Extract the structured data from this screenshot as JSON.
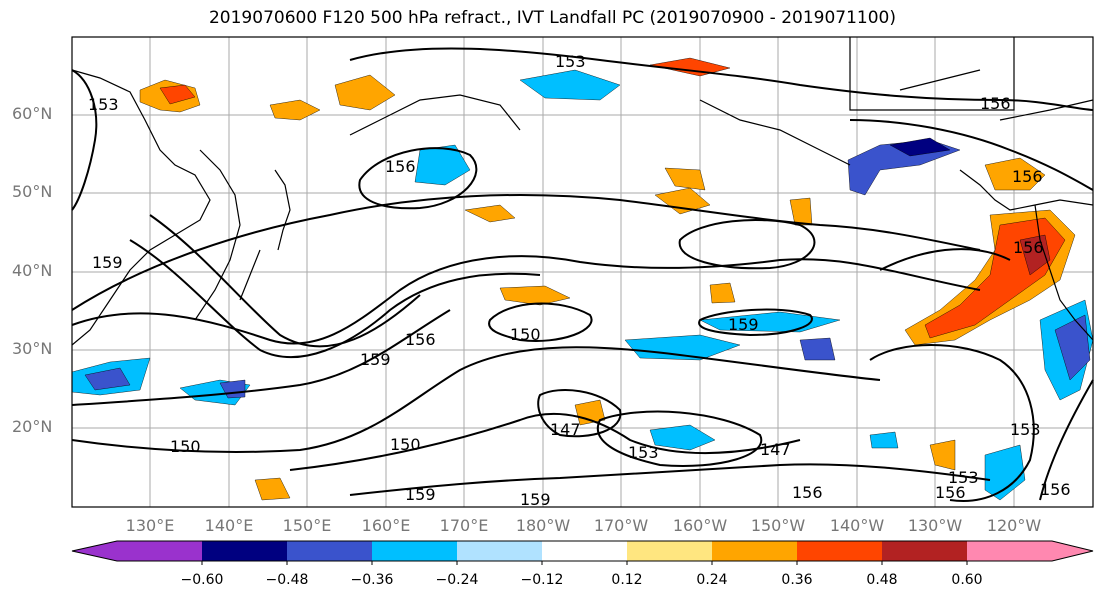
{
  "title": "2019070600 F120 500 hPa refract., IVT Landfall PC (2019070900 - 2019071100)",
  "map": {
    "lat_labels": [
      "60°N",
      "50°N",
      "40°N",
      "30°N",
      "20°N"
    ],
    "lon_labels": [
      "130°E",
      "140°E",
      "150°E",
      "160°E",
      "170°E",
      "180°W",
      "170°W",
      "160°W",
      "150°W",
      "140°W",
      "130°W",
      "120°W"
    ],
    "contour_labels": [
      "153",
      "156",
      "159",
      "150",
      "147"
    ],
    "colors": {
      "land_border": "#000000",
      "grid": "#aaaaaa"
    }
  },
  "colorbar": {
    "tick_labels": [
      "−0.60",
      "−0.48",
      "−0.36",
      "−0.24",
      "−0.12",
      "0.12",
      "0.24",
      "0.36",
      "0.48",
      "0.60"
    ],
    "colors": [
      "#9a32cd",
      "#000080",
      "#3a53cc",
      "#00bfff",
      "#b0e2ff",
      "#ffffff",
      "#ffe680",
      "#ffa500",
      "#ff4500",
      "#b22222",
      "#ff88b0"
    ]
  }
}
